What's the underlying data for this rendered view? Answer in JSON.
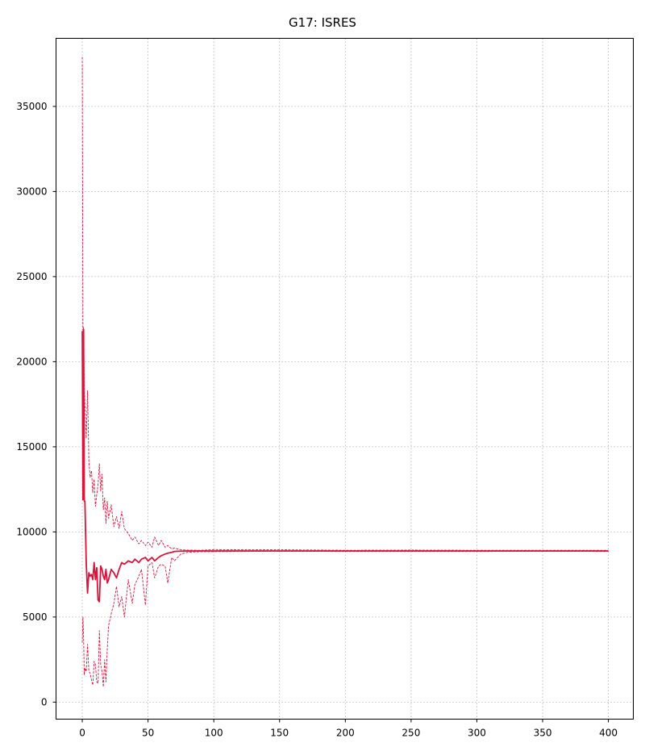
{
  "chart_data": {
    "type": "line",
    "title": "G17: ISRES",
    "xlabel": "",
    "ylabel": "",
    "xlim": [
      -19.95,
      418.95
    ],
    "ylim": [
      -1000,
      39000
    ],
    "xticks": [
      0,
      50,
      100,
      150,
      200,
      250,
      300,
      350,
      400
    ],
    "yticks": [
      0,
      5000,
      10000,
      15000,
      20000,
      25000,
      30000,
      35000
    ],
    "grid": true,
    "legend": "none",
    "color": "#dc143c",
    "series": [
      {
        "style": "solid",
        "x": [
          0,
          0.5,
          1,
          1.5,
          2,
          3,
          4,
          5,
          6,
          7,
          8,
          9,
          10,
          11,
          12,
          13,
          14,
          15,
          16,
          17,
          18,
          19,
          20,
          22,
          24,
          26,
          28,
          30,
          32,
          35,
          38,
          40,
          43,
          45,
          48,
          50,
          53,
          55,
          58,
          60,
          63,
          65,
          68,
          70,
          75,
          80,
          90,
          100,
          120,
          150,
          200,
          250,
          300,
          350,
          400
        ],
        "y": [
          21800,
          11900,
          21900,
          11800,
          11800,
          8200,
          6400,
          7600,
          7400,
          7500,
          7200,
          8200,
          7200,
          7900,
          6000,
          5900,
          8000,
          7800,
          7400,
          7200,
          7800,
          7000,
          7200,
          7800,
          7600,
          7300,
          7800,
          8200,
          8100,
          8300,
          8200,
          8400,
          8200,
          8400,
          8500,
          8300,
          8500,
          8300,
          8500,
          8600,
          8700,
          8750,
          8800,
          8850,
          8870,
          8880,
          8880,
          8880,
          8880,
          8880,
          8880,
          8880,
          8880,
          8880,
          8880
        ]
      },
      {
        "style": "dashed",
        "x": [
          0,
          0.5,
          1,
          1.5,
          2,
          3,
          4,
          5,
          6,
          7,
          8,
          9,
          10,
          11,
          12,
          13,
          14,
          15,
          16,
          17,
          18,
          19,
          20,
          22,
          24,
          26,
          28,
          30,
          32,
          35,
          38,
          40,
          43,
          45,
          48,
          50,
          53,
          55,
          58,
          60,
          63,
          65,
          68,
          70,
          75,
          80,
          90,
          100,
          120,
          150,
          200,
          250,
          300,
          350,
          400
        ],
        "y": [
          37900,
          21800,
          22000,
          18500,
          17500,
          15500,
          18300,
          14200,
          13200,
          13600,
          12300,
          13100,
          11500,
          12200,
          12800,
          14000,
          12400,
          13400,
          11300,
          12000,
          10500,
          11800,
          10800,
          11600,
          10300,
          10900,
          10200,
          11200,
          10200,
          9900,
          9500,
          9700,
          9300,
          9500,
          9200,
          9400,
          9100,
          9700,
          9200,
          9500,
          9100,
          9200,
          9000,
          9050,
          8950,
          8930,
          8920,
          8960,
          8950,
          8950,
          8920,
          8930,
          8920,
          8920,
          8920
        ]
      },
      {
        "style": "dashed",
        "x": [
          0,
          0.5,
          1,
          1.5,
          2,
          3,
          4,
          5,
          6,
          7,
          8,
          9,
          10,
          11,
          12,
          13,
          14,
          15,
          16,
          17,
          18,
          19,
          20,
          22,
          24,
          26,
          28,
          30,
          32,
          35,
          38,
          40,
          43,
          45,
          48,
          50,
          53,
          55,
          58,
          60,
          63,
          65,
          68,
          70,
          75,
          80,
          90,
          100,
          120,
          150,
          200,
          250,
          300,
          350,
          400
        ],
        "y": [
          3500,
          5000,
          3800,
          1600,
          2000,
          1800,
          3400,
          1800,
          1700,
          1300,
          1000,
          2400,
          2200,
          1200,
          1100,
          4200,
          2200,
          1800,
          900,
          2500,
          1200,
          3100,
          4500,
          5200,
          5800,
          6800,
          5600,
          6200,
          5000,
          7200,
          5800,
          6900,
          7400,
          7800,
          5700,
          8000,
          8200,
          7300,
          8000,
          8100,
          8000,
          7000,
          8500,
          8300,
          8700,
          8800,
          8840,
          8840,
          8850,
          8860,
          8850,
          8850,
          8850,
          8860,
          8850
        ]
      }
    ]
  }
}
